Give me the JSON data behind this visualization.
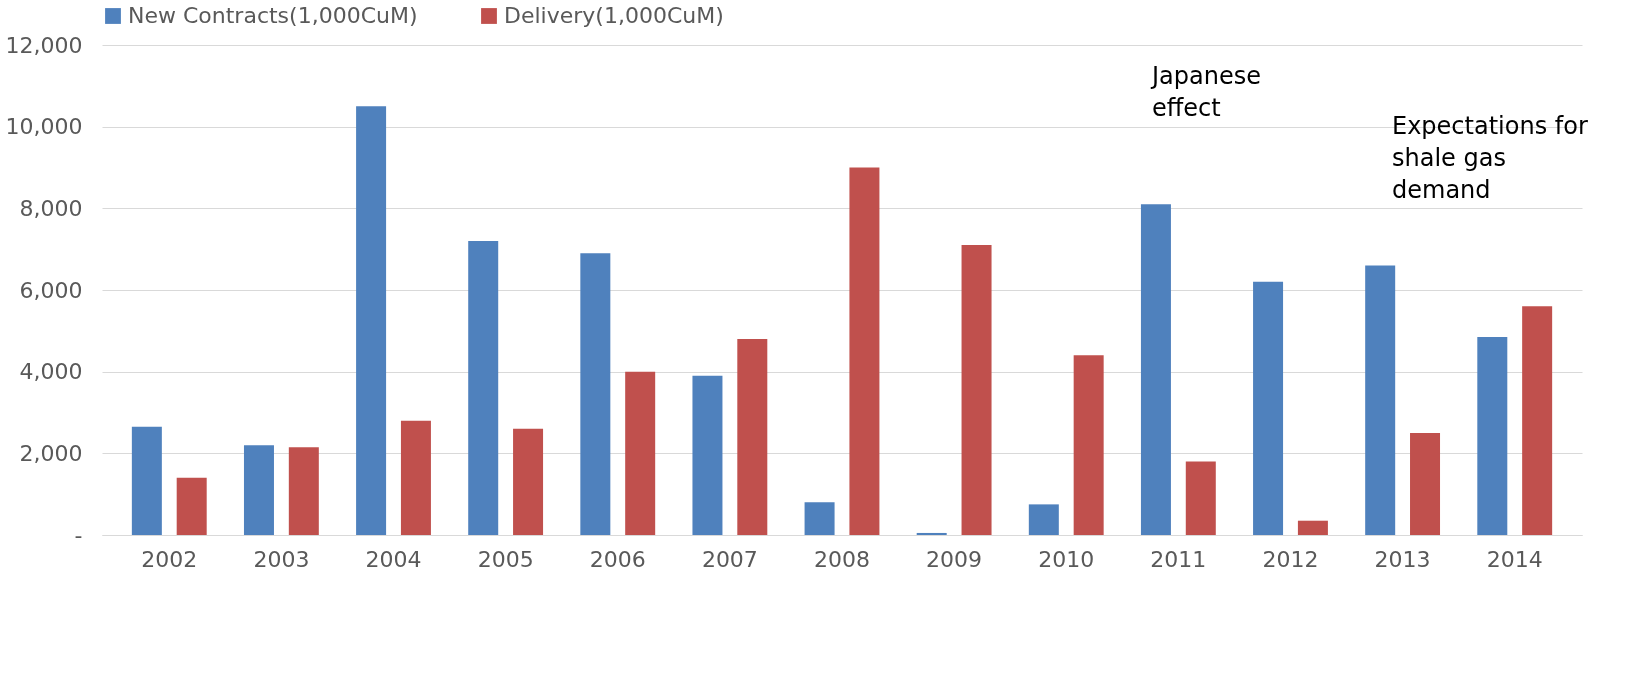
{
  "chart_data": {
    "type": "bar",
    "categories": [
      "2002",
      "2003",
      "2004",
      "2005",
      "2006",
      "2007",
      "2008",
      "2009",
      "2010",
      "2011",
      "2012",
      "2013",
      "2014"
    ],
    "series": [
      {
        "name": "New Contracts(1,000CuM)",
        "color": "#4f81bd",
        "values": [
          2650,
          2200,
          10500,
          7200,
          6900,
          3900,
          800,
          50,
          750,
          8100,
          6200,
          6600,
          4850
        ]
      },
      {
        "name": "Delivery(1,000CuM)",
        "color": "#c0504d",
        "values": [
          1400,
          2150,
          2800,
          2600,
          4000,
          4800,
          9000,
          7100,
          4400,
          1800,
          350,
          2500,
          5600
        ]
      }
    ],
    "ylim": [
      0,
      12000
    ],
    "yticks": [
      {
        "value": 0,
        "label": "-"
      },
      {
        "value": 2000,
        "label": "2,000"
      },
      {
        "value": 4000,
        "label": "4,000"
      },
      {
        "value": 6000,
        "label": "6,000"
      },
      {
        "value": 8000,
        "label": "8,000"
      },
      {
        "value": 10000,
        "label": "10,000"
      },
      {
        "value": 12000,
        "label": "12,000"
      }
    ],
    "grid": "y",
    "legend": "top",
    "annotations": [
      "Japanese\neffect",
      "Expectations for\nshale gas\ndemand"
    ]
  }
}
